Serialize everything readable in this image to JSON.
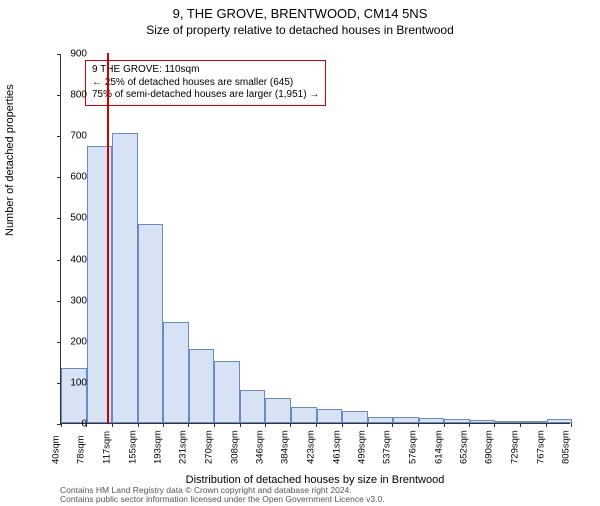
{
  "titles": {
    "line1": "9, THE GROVE, BRENTWOOD, CM14 5NS",
    "line2": "Size of property relative to detached houses in Brentwood"
  },
  "axes": {
    "ylabel": "Number of detached properties",
    "xlabel": "Distribution of detached houses by size in Brentwood",
    "ylim": [
      0,
      900
    ],
    "ytick_step": 100,
    "label_fontsize": 11,
    "tick_fontsize": 10
  },
  "chart": {
    "type": "histogram",
    "bar_fill": "#d7e3f4",
    "bar_stroke": "#6a8bc0",
    "bar_stroke_width": 1,
    "background": "#ffffff",
    "x_start": 40,
    "bin_width": 38.33,
    "xticks": [
      40,
      78,
      117,
      155,
      193,
      231,
      270,
      308,
      346,
      384,
      423,
      461,
      499,
      537,
      576,
      614,
      652,
      690,
      729,
      767,
      805
    ],
    "xtick_suffix": "sqm",
    "values": [
      135,
      675,
      705,
      485,
      245,
      180,
      150,
      80,
      60,
      40,
      35,
      30,
      15,
      15,
      12,
      10,
      8,
      5,
      3,
      10
    ],
    "marker": {
      "value_x": 110,
      "color": "#cc0000",
      "width": 2
    }
  },
  "legend": {
    "border_color": "#cc0000",
    "line1": "9 THE GROVE: 110sqm",
    "line2": "← 25% of detached houses are smaller (645)",
    "line3": "75% of semi-detached houses are larger (1,951) →"
  },
  "footer": {
    "line1": "Contains HM Land Registry data © Crown copyright and database right 2024.",
    "line2": "Contains public sector information licensed under the Open Government Licence v3.0."
  }
}
